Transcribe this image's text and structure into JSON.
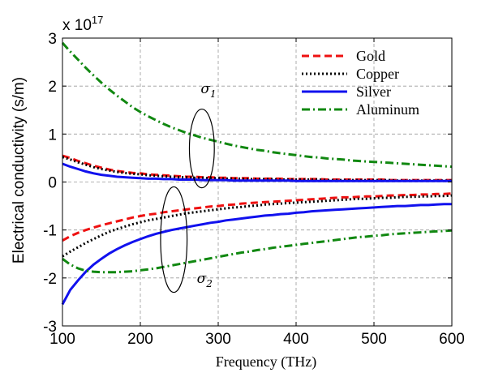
{
  "chart_data": {
    "type": "line",
    "xlabel": "Frequency (THz)",
    "ylabel": "Electrical conductivity (s/m)",
    "y_multiplier": "x 10",
    "y_multiplier_exponent": "17",
    "xlim": [
      100,
      600
    ],
    "ylim": [
      -3,
      3
    ],
    "xticks": [
      100,
      200,
      300,
      400,
      500,
      600
    ],
    "yticks": [
      3,
      2,
      1,
      0,
      -1,
      -2,
      -3
    ],
    "xtick_labels": [
      "100",
      "200",
      "300",
      "400",
      "500",
      "600"
    ],
    "ytick_labels": [
      "3",
      "2",
      "1",
      "0",
      "-1",
      "-2",
      "-3"
    ],
    "grid": true,
    "legend_position": "top-right",
    "x": [
      100,
      110,
      120,
      130,
      140,
      150,
      160,
      170,
      180,
      190,
      200,
      210,
      220,
      230,
      240,
      250,
      260,
      270,
      280,
      290,
      300,
      310,
      320,
      330,
      340,
      350,
      360,
      370,
      380,
      390,
      400,
      410,
      420,
      430,
      440,
      450,
      460,
      470,
      480,
      490,
      500,
      510,
      520,
      530,
      540,
      550,
      560,
      570,
      580,
      590,
      600
    ],
    "series": [
      {
        "name": "Gold",
        "group": "sigma1",
        "color": "#ee1111",
        "dash": "9,5",
        "values": [
          0.55,
          0.5,
          0.44,
          0.39,
          0.34,
          0.3,
          0.26,
          0.23,
          0.21,
          0.19,
          0.18,
          0.16,
          0.15,
          0.14,
          0.13,
          0.12,
          0.11,
          0.11,
          0.1,
          0.1,
          0.09,
          0.09,
          0.08,
          0.08,
          0.08,
          0.07,
          0.07,
          0.07,
          0.07,
          0.06,
          0.06,
          0.06,
          0.06,
          0.06,
          0.05,
          0.05,
          0.05,
          0.05,
          0.05,
          0.05,
          0.05,
          0.05,
          0.04,
          0.04,
          0.04,
          0.04,
          0.04,
          0.04,
          0.04,
          0.04,
          0.04
        ]
      },
      {
        "name": "Copper",
        "group": "sigma1",
        "color": "#000000",
        "dash": "2,3",
        "values": [
          0.52,
          0.47,
          0.41,
          0.36,
          0.31,
          0.27,
          0.24,
          0.21,
          0.19,
          0.17,
          0.16,
          0.14,
          0.13,
          0.12,
          0.11,
          0.1,
          0.1,
          0.09,
          0.09,
          0.08,
          0.08,
          0.07,
          0.07,
          0.07,
          0.06,
          0.06,
          0.06,
          0.06,
          0.05,
          0.05,
          0.05,
          0.05,
          0.05,
          0.05,
          0.04,
          0.04,
          0.04,
          0.04,
          0.04,
          0.04,
          0.04,
          0.04,
          0.04,
          0.03,
          0.03,
          0.03,
          0.03,
          0.03,
          0.03,
          0.03,
          0.03
        ]
      },
      {
        "name": "Silver",
        "group": "sigma1",
        "color": "#1111ee",
        "dash": "",
        "values": [
          0.38,
          0.32,
          0.27,
          0.22,
          0.18,
          0.15,
          0.13,
          0.11,
          0.1,
          0.09,
          0.08,
          0.07,
          0.07,
          0.06,
          0.06,
          0.05,
          0.05,
          0.05,
          0.04,
          0.04,
          0.04,
          0.04,
          0.03,
          0.03,
          0.03,
          0.03,
          0.03,
          0.03,
          0.03,
          0.03,
          0.02,
          0.02,
          0.02,
          0.02,
          0.02,
          0.02,
          0.02,
          0.02,
          0.02,
          0.02,
          0.02,
          0.02,
          0.02,
          0.02,
          0.02,
          0.02,
          0.02,
          0.02,
          0.02,
          0.02,
          0.02
        ]
      },
      {
        "name": "Aluminum",
        "group": "sigma1",
        "color": "#118811",
        "dash": "10,4,2,4",
        "values": [
          2.9,
          2.72,
          2.55,
          2.38,
          2.22,
          2.07,
          1.93,
          1.8,
          1.68,
          1.56,
          1.46,
          1.37,
          1.29,
          1.21,
          1.14,
          1.08,
          1.02,
          0.97,
          0.92,
          0.88,
          0.84,
          0.8,
          0.76,
          0.73,
          0.7,
          0.67,
          0.65,
          0.62,
          0.6,
          0.58,
          0.56,
          0.54,
          0.52,
          0.51,
          0.49,
          0.48,
          0.47,
          0.45,
          0.44,
          0.43,
          0.42,
          0.41,
          0.4,
          0.39,
          0.38,
          0.37,
          0.36,
          0.35,
          0.34,
          0.33,
          0.32
        ]
      },
      {
        "name": "Gold",
        "group": "sigma2",
        "color": "#ee1111",
        "dash": "9,5",
        "values": [
          -1.22,
          -1.13,
          -1.06,
          -1.0,
          -0.95,
          -0.9,
          -0.86,
          -0.82,
          -0.78,
          -0.74,
          -0.71,
          -0.68,
          -0.66,
          -0.63,
          -0.61,
          -0.59,
          -0.57,
          -0.55,
          -0.53,
          -0.51,
          -0.5,
          -0.48,
          -0.47,
          -0.45,
          -0.44,
          -0.43,
          -0.42,
          -0.41,
          -0.4,
          -0.39,
          -0.38,
          -0.37,
          -0.36,
          -0.35,
          -0.34,
          -0.33,
          -0.32,
          -0.32,
          -0.31,
          -0.3,
          -0.3,
          -0.29,
          -0.28,
          -0.28,
          -0.27,
          -0.27,
          -0.26,
          -0.26,
          -0.25,
          -0.25,
          -0.24
        ]
      },
      {
        "name": "Copper",
        "group": "sigma2",
        "color": "#000000",
        "dash": "2,3",
        "values": [
          -1.55,
          -1.45,
          -1.36,
          -1.27,
          -1.19,
          -1.11,
          -1.04,
          -0.98,
          -0.93,
          -0.88,
          -0.84,
          -0.8,
          -0.77,
          -0.74,
          -0.71,
          -0.68,
          -0.65,
          -0.63,
          -0.61,
          -0.59,
          -0.57,
          -0.55,
          -0.53,
          -0.52,
          -0.5,
          -0.49,
          -0.47,
          -0.46,
          -0.45,
          -0.44,
          -0.43,
          -0.42,
          -0.41,
          -0.4,
          -0.39,
          -0.38,
          -0.37,
          -0.36,
          -0.35,
          -0.35,
          -0.34,
          -0.33,
          -0.33,
          -0.32,
          -0.31,
          -0.31,
          -0.3,
          -0.3,
          -0.29,
          -0.29,
          -0.28
        ]
      },
      {
        "name": "Silver",
        "group": "sigma2",
        "color": "#1111ee",
        "dash": "",
        "values": [
          -2.55,
          -2.25,
          -2.05,
          -1.87,
          -1.72,
          -1.6,
          -1.49,
          -1.4,
          -1.32,
          -1.25,
          -1.19,
          -1.13,
          -1.08,
          -1.04,
          -1.0,
          -0.97,
          -0.94,
          -0.91,
          -0.88,
          -0.85,
          -0.83,
          -0.8,
          -0.78,
          -0.76,
          -0.74,
          -0.72,
          -0.7,
          -0.69,
          -0.67,
          -0.66,
          -0.64,
          -0.63,
          -0.61,
          -0.6,
          -0.59,
          -0.58,
          -0.57,
          -0.56,
          -0.55,
          -0.54,
          -0.53,
          -0.52,
          -0.51,
          -0.5,
          -0.5,
          -0.49,
          -0.48,
          -0.48,
          -0.47,
          -0.46,
          -0.46
        ]
      },
      {
        "name": "Aluminum",
        "group": "sigma2",
        "color": "#118811",
        "dash": "10,4,2,4",
        "values": [
          -1.6,
          -1.72,
          -1.8,
          -1.85,
          -1.87,
          -1.88,
          -1.88,
          -1.88,
          -1.87,
          -1.86,
          -1.84,
          -1.82,
          -1.8,
          -1.77,
          -1.74,
          -1.71,
          -1.68,
          -1.65,
          -1.62,
          -1.59,
          -1.56,
          -1.53,
          -1.5,
          -1.47,
          -1.45,
          -1.42,
          -1.4,
          -1.37,
          -1.35,
          -1.33,
          -1.31,
          -1.29,
          -1.27,
          -1.25,
          -1.23,
          -1.21,
          -1.19,
          -1.17,
          -1.15,
          -1.14,
          -1.12,
          -1.11,
          -1.09,
          -1.08,
          -1.07,
          -1.06,
          -1.05,
          -1.04,
          -1.03,
          -1.02,
          -1.01
        ]
      }
    ],
    "legend": [
      "Gold",
      "Copper",
      "Silver",
      "Aluminum"
    ],
    "annotations": [
      {
        "symbol": "σ",
        "subscript": "1",
        "x": 290,
        "y": 1.85
      },
      {
        "symbol": "σ",
        "subscript": "2",
        "x": 285,
        "y": -2.1
      }
    ],
    "ellipses": [
      {
        "cx": 279,
        "cy": 0.7,
        "rx": 16,
        "ry": 0.82
      },
      {
        "cx": 243,
        "cy": -1.2,
        "rx": 17,
        "ry": 1.1
      }
    ]
  }
}
